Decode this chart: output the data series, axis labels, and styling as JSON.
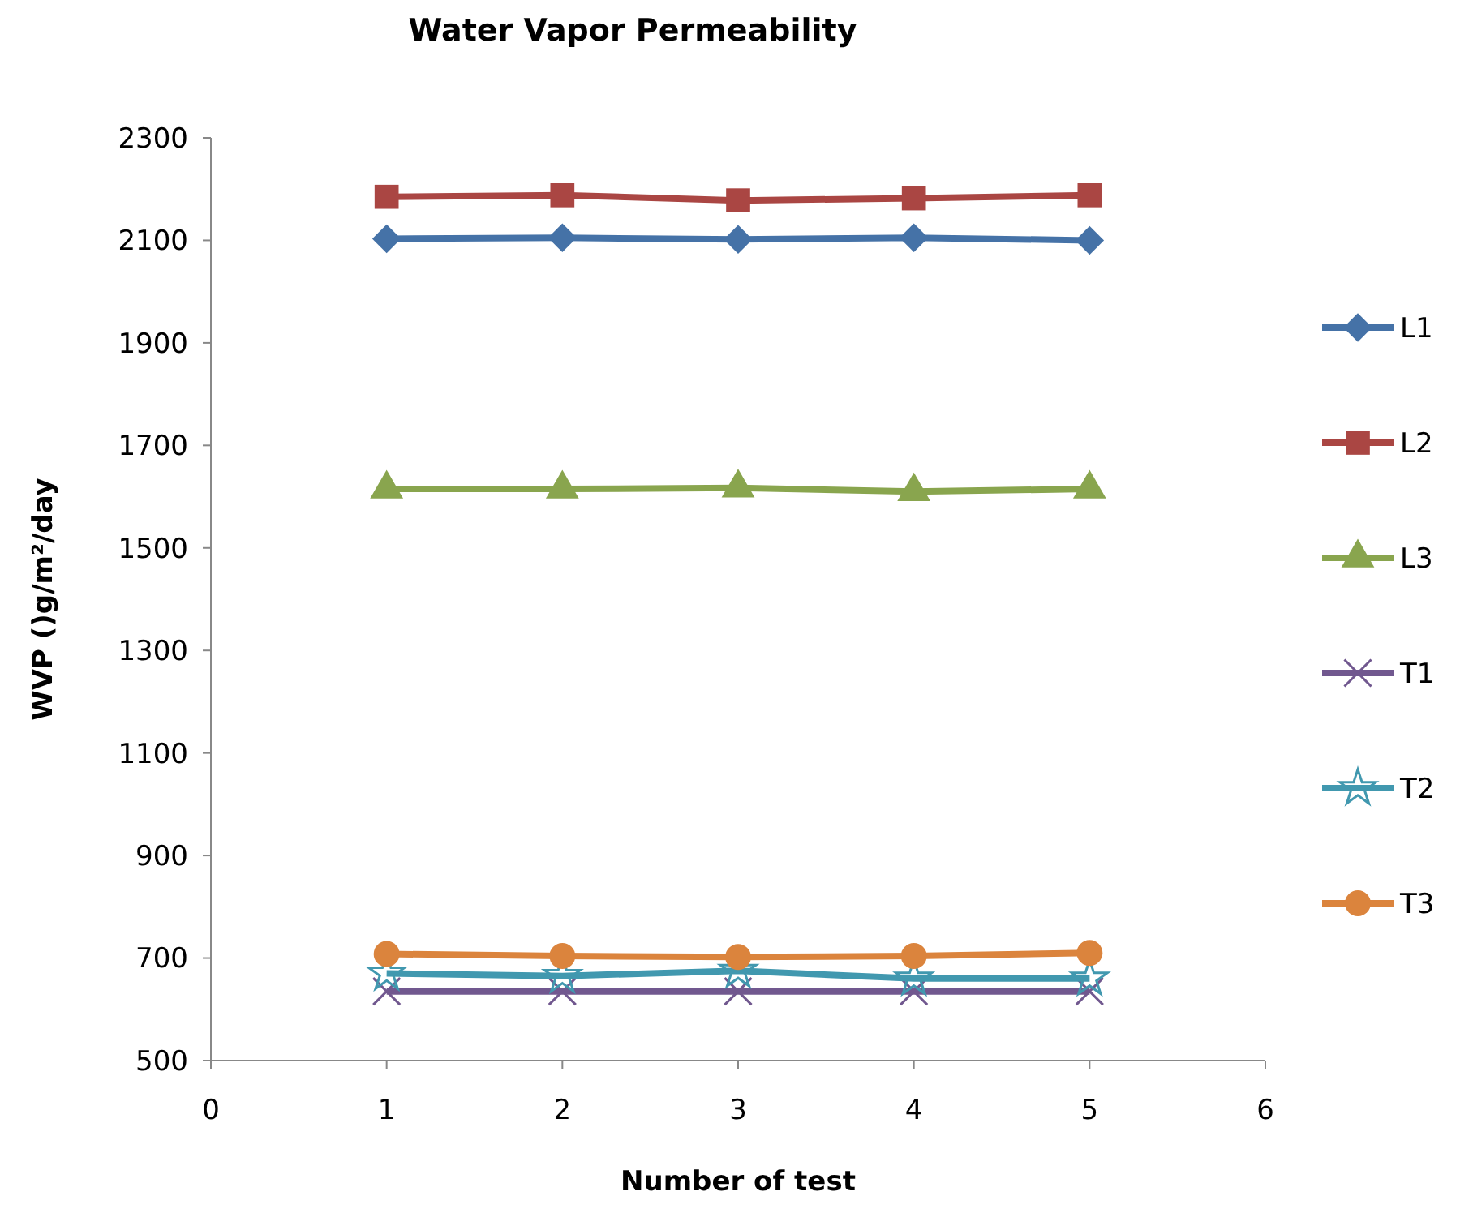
{
  "chart_data": {
    "type": "line",
    "title": "Water Vapor Permeability",
    "xlabel": "Number of test",
    "ylabel": "WVP ()g/m²/day",
    "x": [
      1,
      2,
      3,
      4,
      5
    ],
    "xlim": [
      0,
      6
    ],
    "xticks": [
      0,
      1,
      2,
      3,
      4,
      5,
      6
    ],
    "ylim": [
      500,
      2300
    ],
    "yticks": [
      500,
      700,
      900,
      1100,
      1300,
      1500,
      1700,
      1900,
      2100,
      2300
    ],
    "grid": false,
    "legend": "right",
    "line_style": "solid",
    "series": [
      {
        "name": "L1",
        "color": "#4572a7",
        "marker": "diamond",
        "values": [
          2103,
          2105,
          2102,
          2105,
          2100
        ]
      },
      {
        "name": "L2",
        "color": "#aa4643",
        "marker": "square",
        "values": [
          2185,
          2188,
          2178,
          2182,
          2188
        ]
      },
      {
        "name": "L3",
        "color": "#89a54e",
        "marker": "triangle",
        "values": [
          1615,
          1615,
          1617,
          1610,
          1615
        ]
      },
      {
        "name": "T1",
        "color": "#71588f",
        "marker": "cross",
        "values": [
          635,
          635,
          635,
          635,
          635
        ]
      },
      {
        "name": "T2",
        "color": "#4198af",
        "marker": "star",
        "values": [
          670,
          665,
          675,
          660,
          660
        ]
      },
      {
        "name": "T3",
        "color": "#db843d",
        "marker": "circle",
        "values": [
          708,
          704,
          702,
          704,
          710
        ]
      }
    ]
  }
}
